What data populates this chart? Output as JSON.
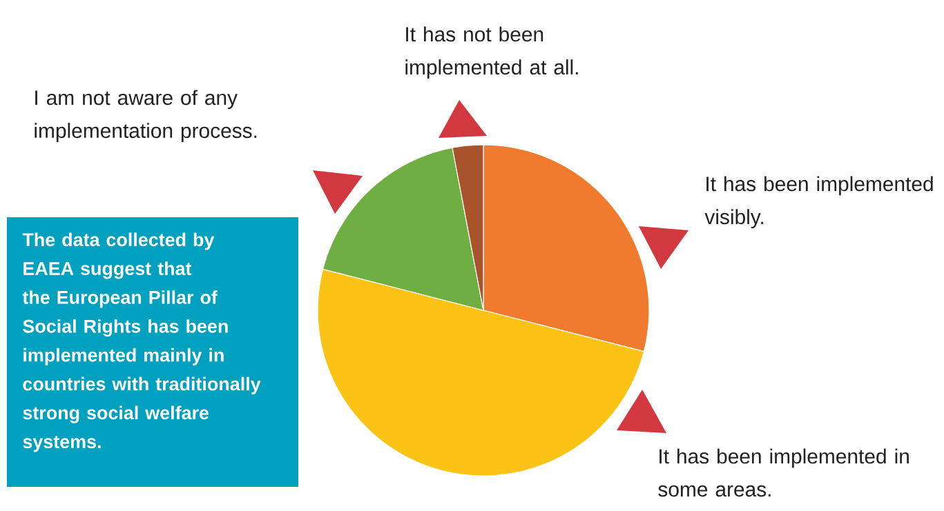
{
  "chart_data": {
    "type": "pie",
    "categories": [
      "It has been implemented visibly.",
      "It has been implemented in some areas.",
      "I am not aware of any implementation process.",
      "It has not been implemented at all."
    ],
    "values": [
      29,
      50,
      18,
      3
    ],
    "colors": [
      "#f07a2e",
      "#fbc316",
      "#6eae42",
      "#a9532c"
    ],
    "legend": false,
    "annotations": [
      "The data collected by EAEA suggest that the European Pillar of Social Rights has been implemented mainly in countries with traditionally strong social welfare systems."
    ]
  }
}
